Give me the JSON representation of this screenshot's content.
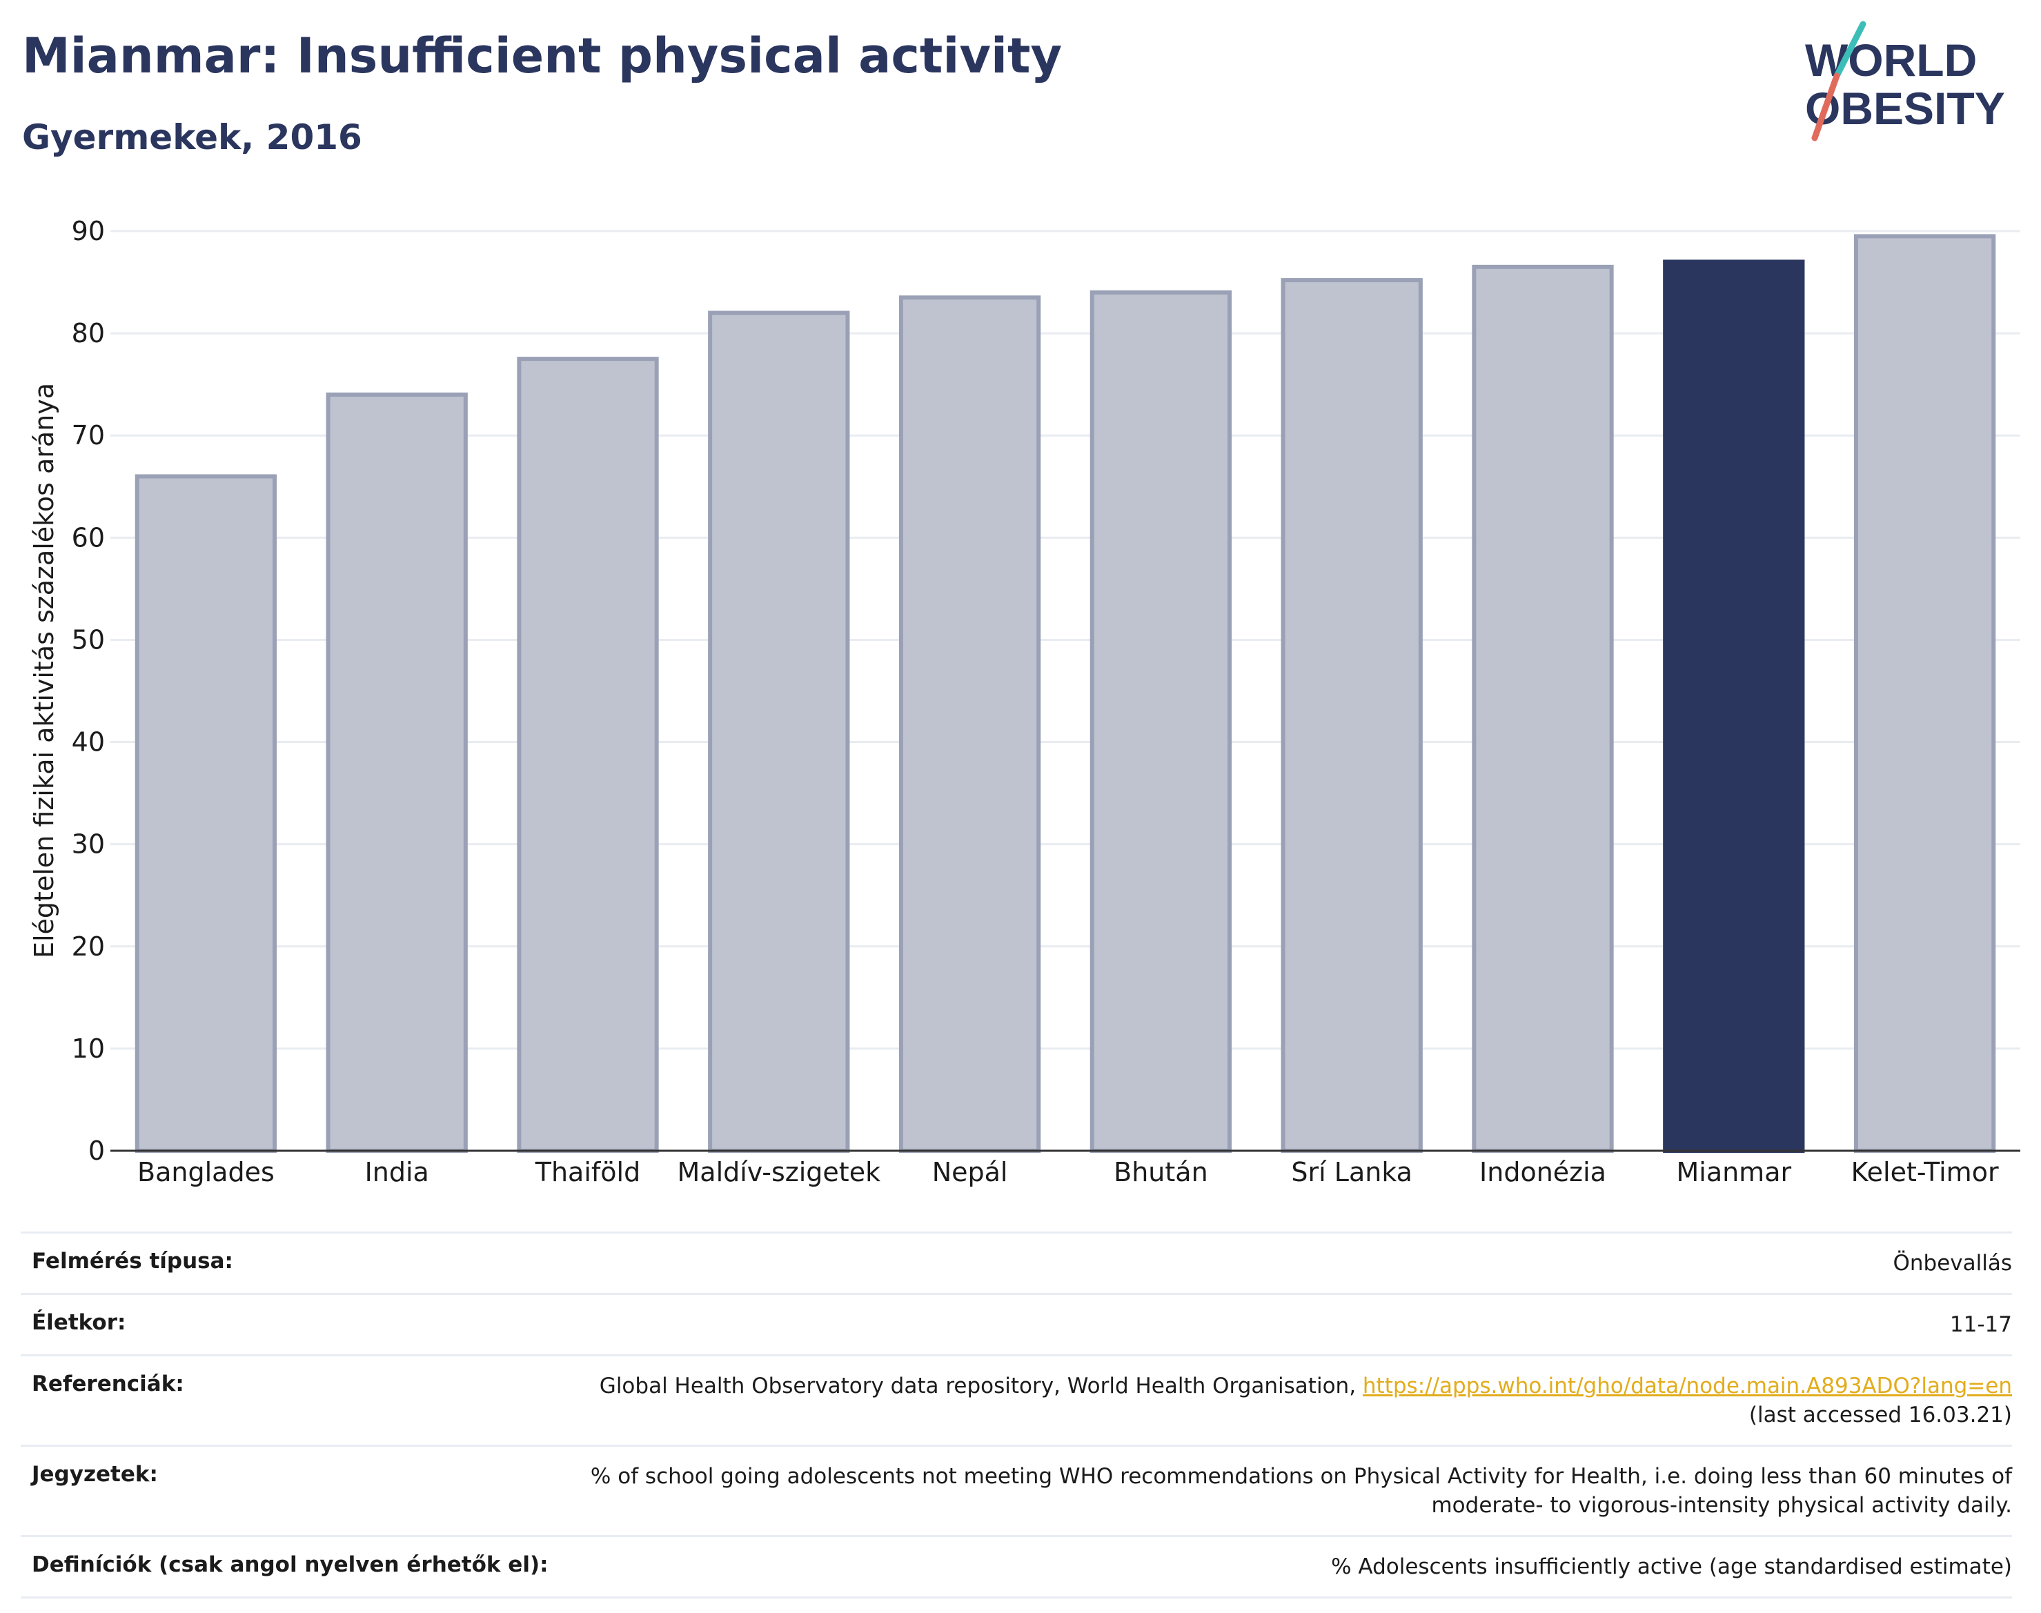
{
  "header": {
    "title": "Mianmar: Insufficient physical activity",
    "subtitle": "Gyermekek, 2016"
  },
  "logo": {
    "line1": "WORLD",
    "line2": "OBESITY"
  },
  "colors": {
    "highlight": "#2b365f",
    "bar_fill": "#bfc3d0",
    "bar_stroke": "#9aa0b5",
    "grid": "#e9ecf1",
    "link": "#e2ac1c"
  },
  "chart_data": {
    "type": "bar",
    "categories": [
      "Banglades",
      "India",
      "Thaiföld",
      "Maldív-szigetek",
      "Nepál",
      "Bhután",
      "Srí Lanka",
      "Indonézia",
      "Mianmar",
      "Kelet-Timor"
    ],
    "values": [
      66,
      74,
      77.5,
      82,
      83.5,
      84,
      85.2,
      86.5,
      87,
      89.5
    ],
    "highlight_category": "Mianmar",
    "ylabel": "Elégtelen fizikai aktivitás százalékos aránya",
    "xlabel": "",
    "ylim": [
      0,
      90
    ],
    "yticks": [
      0,
      10,
      20,
      30,
      40,
      50,
      60,
      70,
      80,
      90
    ],
    "grid": true
  },
  "info": [
    {
      "label": "Felmérés típusa:",
      "value": "Önbevallás"
    },
    {
      "label": "Életkor:",
      "value": "11-17"
    },
    {
      "label": "Referenciák:",
      "value": "Global Health Observatory data repository, World Health Organisation, ",
      "link": "https://apps.who.int/gho/data/node.main.A893ADO?lang=en",
      "value2": "(last accessed 16.03.21)"
    },
    {
      "label": "Jegyzetek:",
      "value": "% of school going adolescents not meeting WHO recommendations on Physical Activity for Health, i.e. doing less than 60 minutes of moderate- to vigorous-intensity physical activity daily."
    },
    {
      "label": "Definíciók (csak angol nyelven érhetők el):",
      "value": "% Adolescents insufficiently active (age standardised estimate)"
    }
  ]
}
